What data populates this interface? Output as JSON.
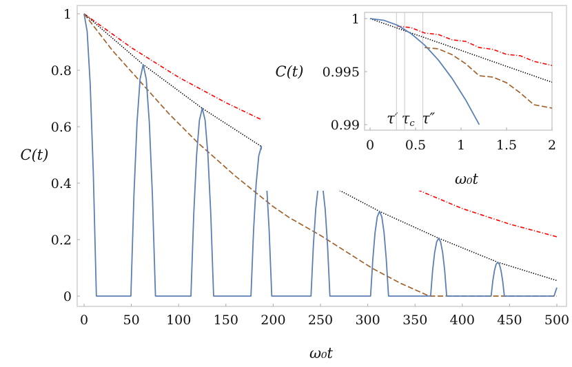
{
  "chart_data": [
    {
      "type": "line",
      "panel": "main",
      "xlabel": "ω₀t",
      "ylabel": "C(t)",
      "xlim": [
        0,
        500
      ],
      "ylim": [
        0,
        1
      ],
      "xticks": [
        0,
        50,
        100,
        150,
        200,
        250,
        300,
        350,
        400,
        450,
        500
      ],
      "yticks": [
        0,
        0.2,
        0.4,
        0.6,
        0.8,
        1
      ],
      "ytick_labels": [
        "0",
        "0.2",
        "0.4",
        "0.6",
        "0.8",
        "1"
      ],
      "grid": false,
      "series": [
        {
          "style": "dash-dot",
          "color": "#ff0000",
          "x": [
            0,
            50,
            100,
            150,
            200,
            250,
            300,
            350,
            400,
            450,
            500
          ],
          "y": [
            1,
            0.88,
            0.775,
            0.685,
            0.605,
            0.53,
            0.458,
            0.38,
            0.31,
            0.255,
            0.21
          ]
        },
        {
          "style": "dotted",
          "color": "#000000",
          "x": [
            0,
            62.5,
            125,
            187.5,
            250,
            312.5,
            375,
            437.5,
            500
          ],
          "y": [
            1,
            0.82,
            0.665,
            0.53,
            0.41,
            0.3,
            0.205,
            0.12,
            0.055
          ]
        },
        {
          "style": "dashed",
          "color": "#a0622d",
          "x": [
            0,
            30,
            62,
            90,
            120,
            160,
            200,
            217,
            250,
            305,
            335,
            365,
            500
          ],
          "y": [
            1,
            0.87,
            0.75,
            0.645,
            0.544,
            0.425,
            0.317,
            0.278,
            0.215,
            0.098,
            0.045,
            0,
            0
          ]
        },
        {
          "style": "solid",
          "color": "#5b7fb5",
          "x": [
            0,
            3.25,
            6.5,
            9.75,
            13,
            49.5,
            52.75,
            56,
            59.25,
            62.5,
            65.75,
            69,
            72.25,
            75.5,
            113,
            116,
            119,
            122,
            125,
            128,
            131,
            134,
            137,
            176.5,
            179.25,
            182,
            184.75,
            187.5,
            190.25,
            193,
            195.75,
            198.5,
            240,
            242.5,
            245,
            247.5,
            250,
            252.5,
            255,
            257.5,
            260,
            303,
            305.4,
            307.75,
            310.1,
            312.5,
            314.9,
            317.25,
            319.6,
            322,
            366.5,
            368.6,
            370.75,
            372.9,
            375,
            377.1,
            379.25,
            381.4,
            383.5,
            430.5,
            432.25,
            434,
            435.75,
            437.5,
            439.25,
            441,
            442.75,
            444.5,
            497,
            500
          ],
          "y": [
            1,
            0.9375,
            0.75,
            0.4375,
            0,
            0,
            0.359,
            0.615,
            0.769,
            0.82,
            0.769,
            0.615,
            0.359,
            0,
            0,
            0.291,
            0.499,
            0.623,
            0.665,
            0.623,
            0.499,
            0.291,
            0,
            0,
            0.232,
            0.398,
            0.497,
            0.53,
            0.497,
            0.398,
            0.232,
            0,
            0,
            0.179,
            0.308,
            0.384,
            0.41,
            0.384,
            0.308,
            0.179,
            0,
            0,
            0.131,
            0.225,
            0.281,
            0.3,
            0.281,
            0.225,
            0.131,
            0,
            0,
            0.09,
            0.154,
            0.192,
            0.205,
            0.192,
            0.154,
            0.09,
            0,
            0,
            0.0525,
            0.09,
            0.1125,
            0.12,
            0.1125,
            0.09,
            0.0525,
            0,
            0,
            0.03
          ]
        }
      ]
    },
    {
      "type": "line",
      "panel": "inset",
      "xlabel": "ω₀t",
      "ylabel": "C(t)",
      "xlim": [
        0,
        2
      ],
      "ylim": [
        0.99,
        1
      ],
      "xticks": [
        0,
        0.5,
        1,
        1.5,
        2
      ],
      "xtick_labels": [
        "0",
        "0.5",
        "1",
        "1.5",
        "2"
      ],
      "yticks": [
        0.99,
        0.995,
        1
      ],
      "ytick_labels": [
        "0.99",
        "0.995",
        "1"
      ],
      "grid": false,
      "vlines": [
        {
          "x": 0.29,
          "label": "τ′",
          "sub": ""
        },
        {
          "x": 0.38,
          "label": "τ",
          "sub": "c"
        },
        {
          "x": 0.58,
          "label": "τ″",
          "sub": ""
        }
      ],
      "series": [
        {
          "style": "dash-dot",
          "color": "#ff0000",
          "x": [
            0.3,
            0.45,
            0.6,
            0.75,
            0.9,
            1.05,
            1.2,
            1.35,
            1.5,
            1.65,
            1.8,
            2
          ],
          "y": [
            0.99928,
            0.99915,
            0.99864,
            0.9985,
            0.998,
            0.99785,
            0.99727,
            0.9971,
            0.99662,
            0.9965,
            0.99597,
            0.99558
          ]
        },
        {
          "style": "dotted",
          "color": "#000000",
          "x": [
            0,
            2
          ],
          "y": [
            1,
            0.994
          ]
        },
        {
          "style": "dashed",
          "color": "#a0622d",
          "x": [
            0.6,
            0.75,
            0.9,
            1.05,
            1.2,
            1.35,
            1.5,
            1.65,
            1.8,
            2
          ],
          "y": [
            0.99727,
            0.99715,
            0.9966,
            0.99575,
            0.99461,
            0.99448,
            0.99395,
            0.993,
            0.99188,
            0.99156
          ]
        },
        {
          "style": "solid",
          "color": "#5b7fb5",
          "x": [
            0,
            0.15,
            0.3,
            0.45,
            0.6,
            0.75,
            0.9,
            1.05,
            1.2
          ],
          "y": [
            1,
            0.99984,
            0.99938,
            0.99859,
            0.9975,
            0.9961,
            0.99438,
            0.99234,
            0.99
          ]
        }
      ]
    }
  ]
}
